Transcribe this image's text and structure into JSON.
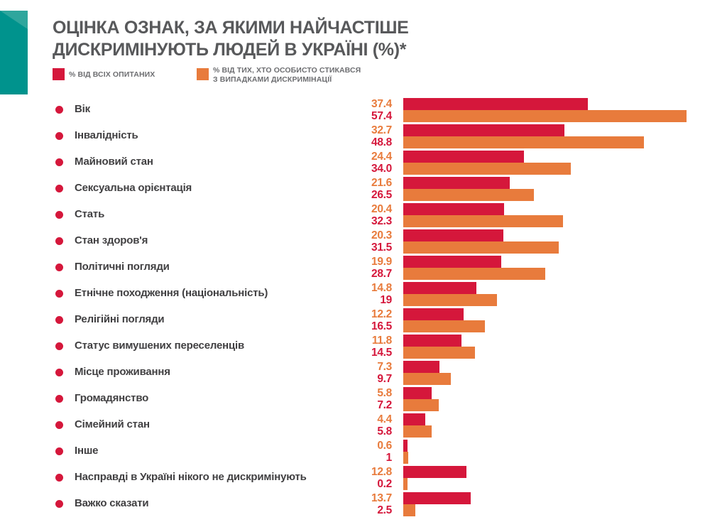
{
  "title": {
    "line1": "ОЦІНКА ОЗНАК, ЗА ЯКИМИ НАЙЧАСТІШЕ",
    "line2": "ДИСКРИМІНУЮТЬ ЛЮДЕЙ В УКРАЇНІ (%)*"
  },
  "legend": {
    "all_respondents": {
      "label": "% ВІД ВСІХ ОПИТАНИХ",
      "color": "#D5173B"
    },
    "experienced": {
      "line1": "% ВІД ТИХ, ХТО ОСОБИСТО СТИКАВСЯ",
      "line2": "З ВИПАДКАМИ ДИСКРИМІНАЦІЇ",
      "color": "#E87B3C"
    }
  },
  "colors": {
    "bar_all_respondents": "#D5173B",
    "bar_experienced": "#E87B3C",
    "value_top_text": "#E87B3C",
    "value_bottom_text": "#D5173B",
    "title_text": "#58595B",
    "legend_text": "#6D6E71",
    "category_text": "#414042",
    "ribbon_teal": "#00938D",
    "ribbon_fold_teal": "#2FA69D",
    "bullet": "#D5173B"
  },
  "chart_data": {
    "type": "bar",
    "orientation": "horizontal",
    "unit": "%",
    "title": "ОЦІНКА ОЗНАК, ЗА ЯКИМИ НАЙЧАСТІШЕ ДИСКРИМІНУЮТЬ ЛЮДЕЙ В УКРАЇНІ (%)*",
    "xlabel": "",
    "ylabel": "",
    "xlim": [
      0,
      60
    ],
    "grid": false,
    "legend_position": "top",
    "categories": [
      "Вік",
      "Інвалідність",
      "Майновий стан",
      "Сексуальна орієнтація",
      "Стать",
      "Стан здоров'я",
      "Політичні погляди",
      "Етнічне походження (національність)",
      "Релігійні погляди",
      "Статус вимушених переселенців",
      "Місце проживання",
      "Громадянство",
      "Сімейний стан",
      "Інше",
      "Насправді в Україні нікого не дискримінують",
      "Важко сказати"
    ],
    "series": [
      {
        "name": "% від всіх опитаних",
        "color": "#D5173B",
        "values": [
          37.4,
          32.7,
          24.4,
          21.6,
          20.4,
          20.3,
          19.9,
          14.8,
          12.2,
          11.8,
          7.3,
          5.8,
          4.4,
          0.6,
          12.8,
          13.7
        ],
        "display": [
          "37.4",
          "32.7",
          "24.4",
          "21.6",
          "20.4",
          "20.3",
          "19.9",
          "14.8",
          "12.2",
          "11.8",
          "7.3",
          "5.8",
          "4.4",
          "0.6",
          "12.8",
          "13.7"
        ]
      },
      {
        "name": "% від тих, хто особисто стикався з випадками дискримінації",
        "color": "#E87B3C",
        "values": [
          57.4,
          48.8,
          34.0,
          26.5,
          32.3,
          31.5,
          28.7,
          19,
          16.5,
          14.5,
          9.7,
          7.2,
          5.8,
          1,
          0.2,
          2.5
        ],
        "display": [
          "57.4",
          "48.8",
          "34.0",
          "26.5",
          "32.3",
          "31.5",
          "28.7",
          "19",
          "16.5",
          "14.5",
          "9.7",
          "7.2",
          "5.8",
          "1",
          "0.2",
          "2.5"
        ]
      }
    ]
  }
}
